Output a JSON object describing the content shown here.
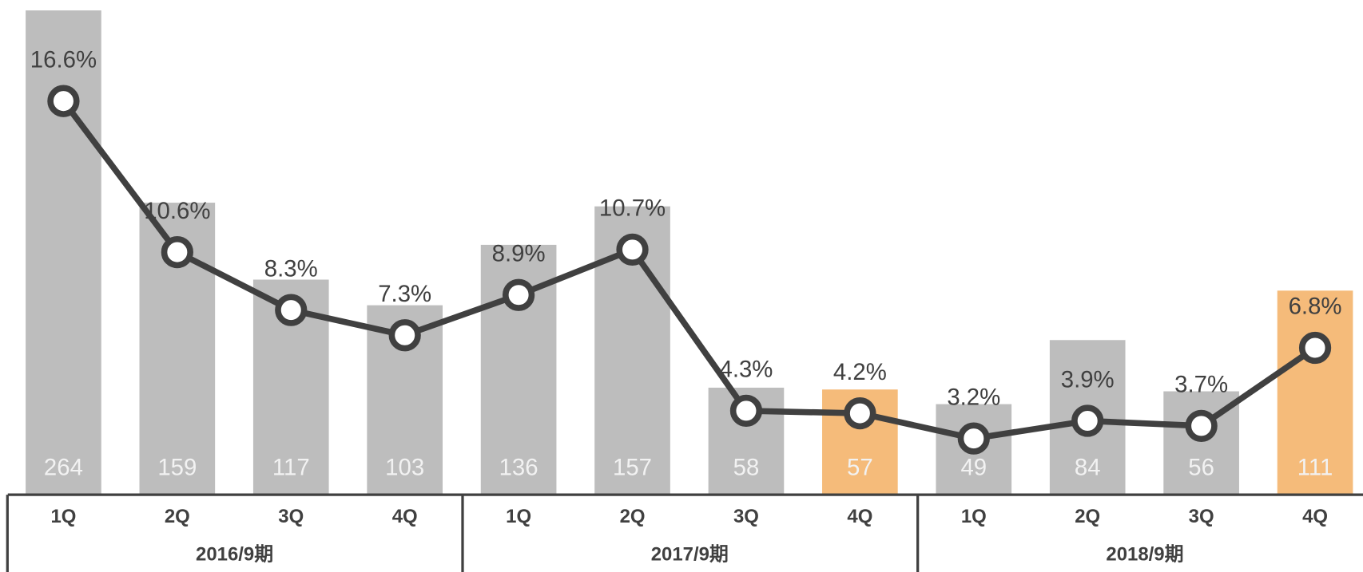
{
  "chart_data": {
    "type": "bar",
    "categories": [
      "1Q",
      "2Q",
      "3Q",
      "4Q",
      "1Q",
      "2Q",
      "3Q",
      "4Q",
      "1Q",
      "2Q",
      "3Q",
      "4Q"
    ],
    "groups": [
      "2016/9期",
      "2017/9期",
      "2018/9期"
    ],
    "series": [
      {
        "type": "bar",
        "values": [
          264,
          159,
          117,
          103,
          136,
          157,
          58,
          57,
          49,
          84,
          56,
          111
        ],
        "colors": [
          "#bdbdbd",
          "#bdbdbd",
          "#bdbdbd",
          "#bdbdbd",
          "#bdbdbd",
          "#bdbdbd",
          "#bdbdbd",
          "#f5bb7a",
          "#bdbdbd",
          "#bdbdbd",
          "#bdbdbd",
          "#f5bb7a"
        ]
      },
      {
        "type": "line",
        "axis": "y2",
        "color": "#404040",
        "values": [
          16.6,
          10.6,
          8.3,
          7.3,
          8.9,
          10.7,
          4.3,
          4.2,
          3.2,
          3.9,
          3.7,
          6.8
        ],
        "value_labels": [
          "16.6%",
          "10.6%",
          "8.3%",
          "7.3%",
          "8.9%",
          "10.7%",
          "4.3%",
          "4.2%",
          "3.2%",
          "3.9%",
          "3.7%",
          "6.8%"
        ]
      }
    ],
    "ylim": [
      0,
      264
    ],
    "y2lim": [
      1,
      20.2
    ]
  }
}
